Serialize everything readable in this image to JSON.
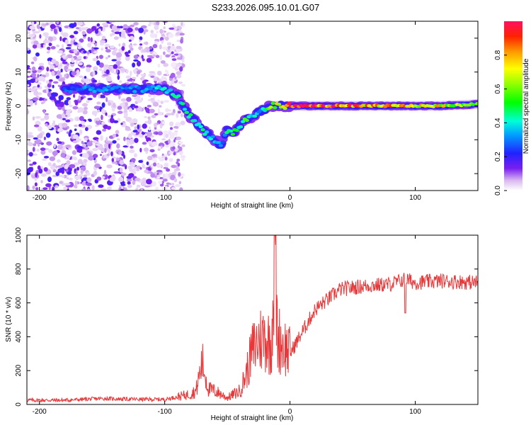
{
  "title": "S233.2026.095.10.01.G07",
  "chart_data": [
    {
      "type": "heatmap",
      "xlabel": "Height of straight line (km)",
      "ylabel": "Frequency (Hz)",
      "xlim": [
        -210,
        150
      ],
      "ylim": [
        -25,
        25
      ],
      "xticks": [
        -200,
        -100,
        0,
        100
      ],
      "yticks": [
        -20,
        -10,
        0,
        10,
        20
      ],
      "colorbar": {
        "label": "Normalized spectral amplitude",
        "range": [
          0,
          1
        ],
        "ticks": [
          "0.0",
          "0.2",
          "0.4",
          "0.6",
          "0.8"
        ]
      },
      "ridge": {
        "x": [
          -180,
          -160,
          -140,
          -120,
          -100,
          -90,
          -80,
          -70,
          -60,
          -55,
          -50,
          -45,
          -40,
          -35,
          -30,
          -25,
          -20,
          -15,
          -10,
          -5,
          0,
          20,
          40,
          60,
          80,
          100,
          120,
          150
        ],
        "frequency": [
          5,
          5,
          5,
          5,
          5,
          3,
          -3,
          -7,
          -10,
          -12,
          -7,
          -8,
          -6,
          -4,
          -3,
          -2,
          -1,
          0,
          0,
          0,
          0,
          0,
          0,
          0,
          0,
          0,
          0,
          0.5
        ],
        "amplitude": [
          0.25,
          0.3,
          0.3,
          0.3,
          0.4,
          0.45,
          0.45,
          0.4,
          0.35,
          0.3,
          0.45,
          0.45,
          0.4,
          0.5,
          0.4,
          0.35,
          0.4,
          0.6,
          0.7,
          0.8,
          0.9,
          0.95,
          0.9,
          0.8,
          0.8,
          0.75,
          0.7,
          0.6
        ]
      },
      "noise_region": [
        -210,
        -95
      ]
    },
    {
      "type": "line",
      "xlabel": "Height of straight line (km)",
      "ylabel": "SNR (10 * v/v)",
      "xlim": [
        -210,
        150
      ],
      "ylim": [
        0,
        1000
      ],
      "xticks": [
        -200,
        -100,
        0,
        100
      ],
      "yticks": [
        0,
        200,
        400,
        600,
        800,
        1000
      ],
      "series": [
        {
          "name": "SNR",
          "color": "#e8383a",
          "x": [
            -210,
            -180,
            -150,
            -120,
            -100,
            -90,
            -80,
            -75,
            -70,
            -65,
            -60,
            -55,
            -50,
            -45,
            -40,
            -35,
            -30,
            -25,
            -20,
            -15,
            -12,
            -10,
            -5,
            0,
            10,
            20,
            30,
            40,
            60,
            80,
            92,
            100,
            120,
            150
          ],
          "values": [
            25,
            25,
            35,
            30,
            30,
            45,
            60,
            80,
            250,
            90,
            80,
            60,
            40,
            60,
            80,
            180,
            320,
            380,
            400,
            350,
            900,
            400,
            350,
            300,
            430,
            560,
            620,
            680,
            700,
            710,
            740,
            720,
            730,
            720
          ]
        }
      ]
    }
  ]
}
